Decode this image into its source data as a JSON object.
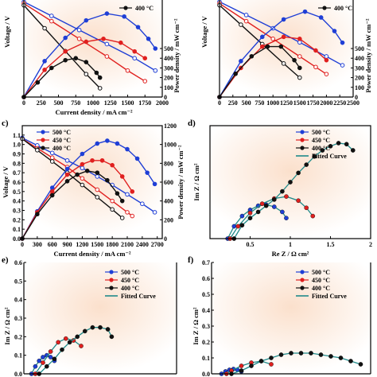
{
  "colors": {
    "s500": "#1f3fd6",
    "s450": "#e0201f",
    "s400": "#111111",
    "fit": "#1f8a8a",
    "bg": "#fbe6d6"
  },
  "chart_data": [
    {
      "id": "a",
      "type": "line",
      "title": "",
      "xlabel": "Current density / mA cm⁻²",
      "ylabel": "Voltage / V",
      "y2label": "Power density / mW cm⁻²",
      "xlim": [
        0,
        2000
      ],
      "ylim": [
        0,
        1.1
      ],
      "y2lim": [
        0,
        1000
      ],
      "xticks": [
        0,
        250,
        500,
        750,
        1000,
        1250,
        1500,
        1750,
        2000
      ],
      "y2ticks": [
        0,
        100,
        200,
        300,
        400,
        500
      ],
      "legend": [
        "400 °C"
      ],
      "series": [
        {
          "key": "s500",
          "kind": "voltage",
          "x": [
            0,
            400,
            800,
            1200,
            1600,
            1900
          ],
          "y": [
            1.08,
            0.92,
            0.76,
            0.6,
            0.44,
            0.3
          ]
        },
        {
          "key": "s450",
          "kind": "voltage",
          "x": [
            0,
            400,
            800,
            1200,
            1500,
            1750
          ],
          "y": [
            1.06,
            0.86,
            0.66,
            0.46,
            0.3,
            0.18
          ]
        },
        {
          "key": "s400",
          "kind": "voltage",
          "x": [
            0,
            300,
            600,
            900,
            1100
          ],
          "y": [
            1.04,
            0.78,
            0.52,
            0.26,
            0.1
          ]
        },
        {
          "key": "s500",
          "kind": "power",
          "x": [
            0,
            300,
            600,
            900,
            1200,
            1450,
            1650,
            1800,
            1900
          ],
          "y": [
            0,
            370,
            610,
            790,
            860,
            830,
            720,
            600,
            500
          ]
        },
        {
          "key": "s450",
          "kind": "power",
          "x": [
            0,
            300,
            600,
            900,
            1150,
            1400,
            1600,
            1750
          ],
          "y": [
            0,
            280,
            470,
            570,
            600,
            560,
            470,
            400
          ]
        },
        {
          "key": "s400",
          "kind": "power",
          "x": [
            0,
            200,
            400,
            600,
            750,
            900,
            1050,
            1100
          ],
          "y": [
            0,
            150,
            300,
            380,
            400,
            360,
            250,
            200
          ]
        }
      ]
    },
    {
      "id": "b",
      "type": "line",
      "title": "",
      "xlabel": "",
      "ylabel": "Voltage / V",
      "y2label": "Power density / mW cm⁻²",
      "xlim": [
        0,
        2500
      ],
      "ylim": [
        0,
        1.1
      ],
      "y2lim": [
        0,
        1000
      ],
      "xticks": [
        0,
        250,
        500,
        750,
        1000,
        1250,
        1500,
        1750,
        2000,
        2250,
        2500
      ],
      "y2ticks": [
        0,
        100,
        200,
        300,
        400,
        500
      ],
      "legend": [
        "400 °C"
      ],
      "series": [
        {
          "key": "s500",
          "kind": "voltage",
          "x": [
            0,
            500,
            1000,
            1500,
            2000,
            2300
          ],
          "y": [
            1.08,
            0.93,
            0.78,
            0.62,
            0.46,
            0.36
          ]
        },
        {
          "key": "s450",
          "kind": "voltage",
          "x": [
            0,
            500,
            1000,
            1500,
            1800,
            2000
          ],
          "y": [
            1.06,
            0.86,
            0.66,
            0.46,
            0.34,
            0.26
          ]
        },
        {
          "key": "s400",
          "kind": "voltage",
          "x": [
            0,
            400,
            800,
            1200,
            1500
          ],
          "y": [
            1.04,
            0.82,
            0.6,
            0.38,
            0.22
          ]
        },
        {
          "key": "s500",
          "kind": "power",
          "x": [
            0,
            400,
            800,
            1200,
            1600,
            1900,
            2150,
            2300
          ],
          "y": [
            0,
            370,
            620,
            800,
            880,
            820,
            680,
            560
          ]
        },
        {
          "key": "s450",
          "kind": "power",
          "x": [
            0,
            400,
            800,
            1200,
            1500,
            1800,
            2000
          ],
          "y": [
            0,
            300,
            520,
            620,
            600,
            480,
            380
          ]
        },
        {
          "key": "s400",
          "kind": "power",
          "x": [
            0,
            300,
            600,
            900,
            1150,
            1400,
            1500
          ],
          "y": [
            0,
            240,
            420,
            520,
            520,
            380,
            300
          ]
        }
      ]
    },
    {
      "id": "c",
      "type": "line",
      "title": "",
      "xlabel": "Current density / mA cm⁻²",
      "ylabel": "Voltage / V",
      "y2label": "Power density / mW cm⁻²",
      "xlim": [
        0,
        2800
      ],
      "ylim": [
        0,
        1.2
      ],
      "y2lim": [
        0,
        1200
      ],
      "xticks": [
        0,
        300,
        600,
        900,
        1200,
        1500,
        1800,
        2100,
        2400,
        2700
      ],
      "yticks": [
        0.0,
        0.1,
        0.2,
        0.3,
        0.4,
        0.5,
        0.6,
        0.7,
        0.8,
        0.9,
        1.0,
        1.1
      ],
      "y2ticks": [
        0,
        200,
        400,
        600,
        800,
        1000,
        1200
      ],
      "legend": [
        "500 °C",
        "450 °C",
        "400 °C"
      ],
      "series": [
        {
          "key": "s500",
          "kind": "voltage",
          "x": [
            0,
            300,
            600,
            900,
            1200,
            1500,
            1800,
            2100,
            2400,
            2650
          ],
          "y": [
            1.07,
            0.99,
            0.91,
            0.83,
            0.75,
            0.66,
            0.57,
            0.47,
            0.37,
            0.28
          ]
        },
        {
          "key": "s450",
          "kind": "voltage",
          "x": [
            0,
            300,
            600,
            900,
            1200,
            1500,
            1800,
            2100,
            2200
          ],
          "y": [
            1.06,
            0.96,
            0.86,
            0.76,
            0.64,
            0.52,
            0.4,
            0.28,
            0.24
          ]
        },
        {
          "key": "s400",
          "kind": "voltage",
          "x": [
            0,
            300,
            600,
            900,
            1200,
            1500,
            1800,
            2000
          ],
          "y": [
            1.06,
            0.94,
            0.82,
            0.7,
            0.57,
            0.44,
            0.31,
            0.22
          ]
        },
        {
          "key": "s500",
          "kind": "power",
          "x": [
            0,
            300,
            600,
            900,
            1200,
            1500,
            1700,
            1900,
            2100,
            2300,
            2500,
            2650
          ],
          "y": [
            0,
            290,
            540,
            740,
            900,
            1010,
            1040,
            1010,
            950,
            850,
            700,
            580
          ]
        },
        {
          "key": "s450",
          "kind": "power",
          "x": [
            0,
            300,
            600,
            900,
            1200,
            1400,
            1600,
            1800,
            2000,
            2200
          ],
          "y": [
            0,
            280,
            500,
            680,
            790,
            830,
            830,
            780,
            660,
            500
          ]
        },
        {
          "key": "s400",
          "kind": "power",
          "x": [
            0,
            300,
            600,
            900,
            1100,
            1300,
            1500,
            1700,
            1900,
            2000
          ],
          "y": [
            0,
            260,
            460,
            610,
            680,
            720,
            700,
            620,
            480,
            400
          ]
        }
      ]
    },
    {
      "id": "d",
      "type": "scatter",
      "title": "",
      "xlabel": "Re Z / Ω cm²",
      "ylabel": "Im Z / Ω cm²",
      "xlim": [
        0,
        2.0
      ],
      "ylim": [
        0,
        1.1
      ],
      "xticks": [
        0.5,
        1.0,
        1.5,
        2.0
      ],
      "legend": [
        "500 °C",
        "450 °C",
        "400 °C",
        "Fitted Curve"
      ],
      "series": [
        {
          "key": "s500",
          "x": [
            0.22,
            0.3,
            0.4,
            0.5,
            0.6,
            0.7,
            0.8,
            0.9,
            0.95
          ],
          "y": [
            0.0,
            0.12,
            0.22,
            0.28,
            0.32,
            0.33,
            0.31,
            0.26,
            0.2
          ]
        },
        {
          "key": "s450",
          "x": [
            0.25,
            0.35,
            0.5,
            0.65,
            0.8,
            0.95,
            1.1,
            1.2,
            1.28
          ],
          "y": [
            0.0,
            0.12,
            0.25,
            0.34,
            0.39,
            0.41,
            0.37,
            0.3,
            0.22
          ]
        },
        {
          "key": "s400",
          "x": [
            0.3,
            0.4,
            0.5,
            0.6,
            0.7,
            0.8,
            0.9,
            1.0,
            1.1,
            1.2,
            1.3,
            1.4,
            1.5,
            1.6,
            1.7,
            1.78
          ],
          "y": [
            0.0,
            0.13,
            0.2,
            0.26,
            0.32,
            0.38,
            0.46,
            0.55,
            0.64,
            0.72,
            0.8,
            0.86,
            0.9,
            0.93,
            0.92,
            0.86
          ]
        }
      ]
    },
    {
      "id": "e",
      "type": "scatter",
      "title": "",
      "xlabel": "",
      "ylabel": "Im Z / Ω cm²",
      "xlim": [
        0,
        2.0
      ],
      "ylim": [
        0,
        0.6
      ],
      "yticks": [
        0.0,
        0.1,
        0.2,
        0.3,
        0.4,
        0.5,
        0.6
      ],
      "legend": [
        "500 °C",
        "450 °C",
        "400 °C",
        "Fitted Curve"
      ],
      "series": [
        {
          "key": "s500",
          "x": [
            0.1,
            0.15,
            0.2,
            0.25,
            0.3,
            0.35,
            0.4
          ],
          "y": [
            0.0,
            0.04,
            0.07,
            0.09,
            0.1,
            0.09,
            0.07
          ]
        },
        {
          "key": "s450",
          "x": [
            0.15,
            0.25,
            0.35,
            0.45,
            0.55,
            0.65,
            0.75
          ],
          "y": [
            0.0,
            0.06,
            0.12,
            0.17,
            0.19,
            0.18,
            0.15
          ]
        },
        {
          "key": "s400",
          "x": [
            0.2,
            0.3,
            0.4,
            0.5,
            0.6,
            0.7,
            0.8,
            0.9,
            1.0,
            1.1,
            1.15
          ],
          "y": [
            0.0,
            0.04,
            0.08,
            0.13,
            0.17,
            0.2,
            0.23,
            0.25,
            0.25,
            0.24,
            0.2
          ]
        }
      ]
    },
    {
      "id": "f",
      "type": "scatter",
      "title": "",
      "xlabel": "",
      "ylabel": "Im Z / Ω cm²",
      "xlim": [
        0,
        1.6
      ],
      "ylim": [
        0,
        0.7
      ],
      "yticks": [
        0.0,
        0.1,
        0.2,
        0.3,
        0.4,
        0.5,
        0.6,
        0.7
      ],
      "legend": [
        "500 °C",
        "450 °C",
        "400 °C",
        "Fitted Curve"
      ],
      "series": [
        {
          "key": "s500",
          "x": [
            0.1,
            0.14,
            0.18,
            0.22,
            0.26,
            0.3
          ],
          "y": [
            0.0,
            0.015,
            0.025,
            0.03,
            0.025,
            0.015
          ]
        },
        {
          "key": "s450",
          "x": [
            0.15,
            0.2,
            0.3,
            0.4,
            0.5,
            0.6
          ],
          "y": [
            0.0,
            0.02,
            0.05,
            0.07,
            0.08,
            0.06
          ]
        },
        {
          "key": "s400",
          "x": [
            0.2,
            0.3,
            0.4,
            0.5,
            0.6,
            0.7,
            0.8,
            0.9,
            1.0,
            1.1,
            1.2,
            1.3,
            1.4,
            1.5
          ],
          "y": [
            0.0,
            0.02,
            0.05,
            0.08,
            0.1,
            0.12,
            0.13,
            0.13,
            0.13,
            0.12,
            0.11,
            0.1,
            0.08,
            0.06
          ]
        }
      ]
    }
  ],
  "panel_labels": {
    "c": "c)",
    "d": "d)",
    "e": "e)",
    "f": "f)"
  },
  "text": {
    "a_xlabel": "Current density / mA cm⁻²",
    "b_xlabel": "",
    "c_xlabel": "Current density / mA cm⁻²",
    "d_xlabel": "Re Z / Ω cm²",
    "voltage": "Voltage / V",
    "power": "Power density / mW cm⁻²",
    "imz": "Im Z / Ω cm²"
  }
}
